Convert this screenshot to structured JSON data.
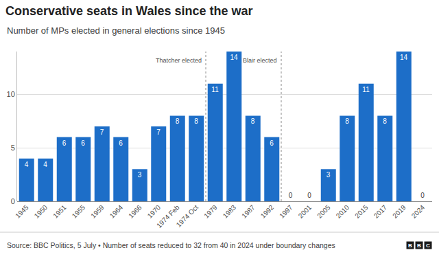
{
  "chart_data": {
    "type": "bar",
    "title": "Conservative seats in Wales since the war",
    "subtitle": "Number of MPs elected in general elections since 1945",
    "source": "Source: BBC Politics, 5 July • Number of seats reduced to 32 from 40 in 2024 under boundary changes",
    "logo": "BBC",
    "categories": [
      "1945",
      "1950",
      "1951",
      "1955",
      "1959",
      "1964",
      "1966",
      "1970",
      "1974 Feb",
      "1974 Oct",
      "1979",
      "1983",
      "1987",
      "1992",
      "1997",
      "2001",
      "2005",
      "2010",
      "2015",
      "2017",
      "2019",
      "2024"
    ],
    "values": [
      4,
      4,
      6,
      6,
      7,
      6,
      3,
      7,
      8,
      8,
      11,
      14,
      8,
      6,
      0,
      0,
      3,
      8,
      11,
      8,
      14,
      0
    ],
    "color": "#1d6ec8",
    "ylim": [
      0,
      14
    ],
    "yticks": [
      0,
      5,
      10
    ],
    "grid": true,
    "data_labels": true,
    "annotations": [
      {
        "text": "Thatcher elected",
        "category": "1979"
      },
      {
        "text": "Blair elected",
        "category": "1997"
      }
    ]
  }
}
